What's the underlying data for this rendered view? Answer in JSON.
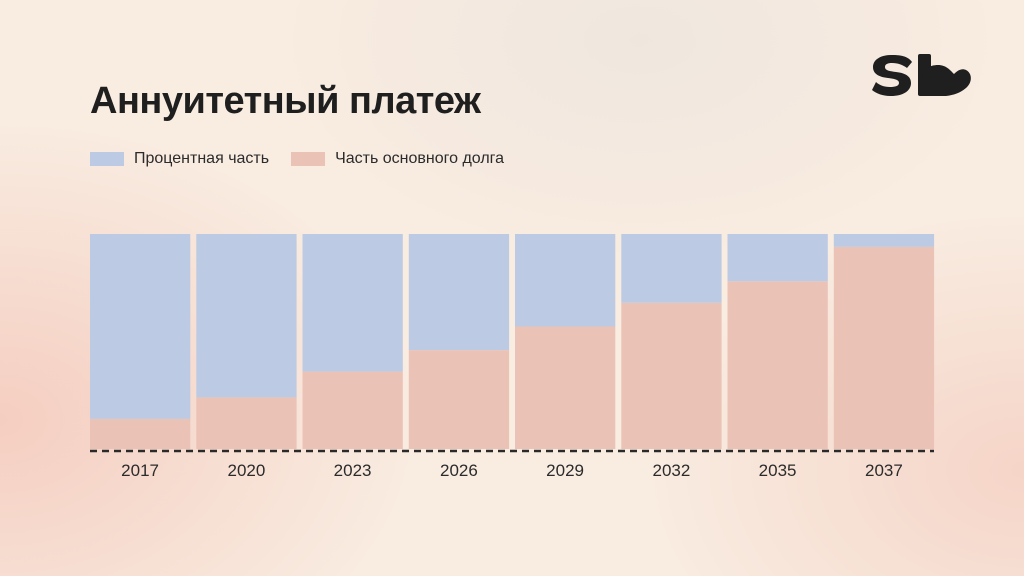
{
  "title": "Аннуитетный платеж",
  "logo": {
    "icon": "sb-logo-icon"
  },
  "legend": [
    {
      "label": "Процентная часть",
      "color": "#bccbe3"
    },
    {
      "label": "Часть основного долга",
      "color": "#ebc3b6"
    }
  ],
  "chart_data": {
    "type": "bar",
    "stacked": true,
    "categories": [
      "2017",
      "2020",
      "2023",
      "2026",
      "2029",
      "2032",
      "2035",
      "2037"
    ],
    "series": [
      {
        "name": "Часть основного долга",
        "color": "#ebc3b6",
        "values": [
          14,
          24,
          36,
          46,
          57,
          68,
          78,
          94
        ]
      },
      {
        "name": "Процентная часть",
        "color": "#bccbe3",
        "values": [
          86,
          76,
          64,
          54,
          43,
          32,
          22,
          6
        ]
      }
    ],
    "ylim": [
      0,
      100
    ],
    "grid": false,
    "legend_position": "top-left",
    "baseline_style": "dashed"
  }
}
